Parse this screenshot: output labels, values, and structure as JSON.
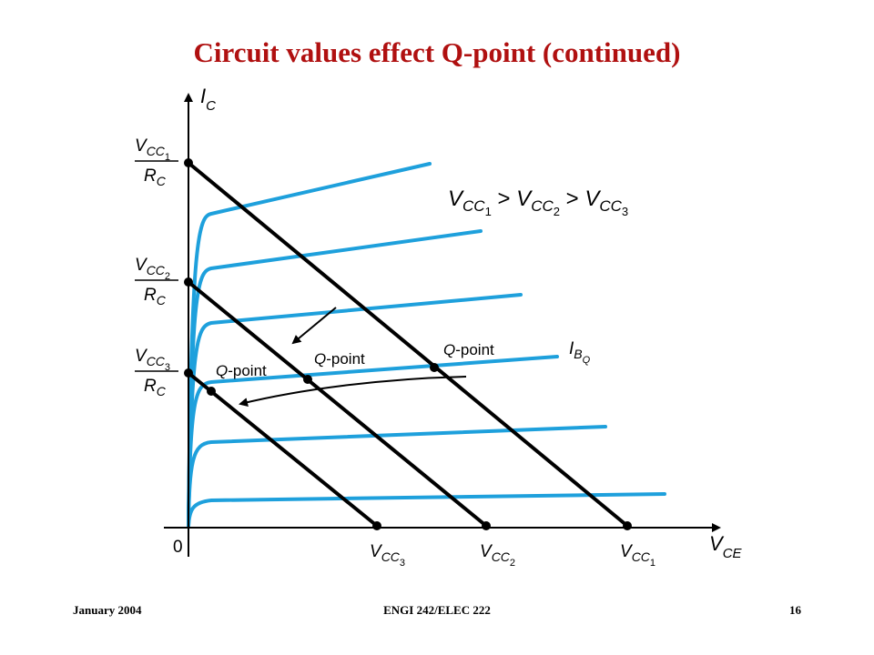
{
  "slide": {
    "title": "Circuit values effect Q-point (continued)"
  },
  "footer": {
    "date": "January 2004",
    "course": "ENGI 242/ELEC 222",
    "page": "16"
  },
  "diagram": {
    "axes": {
      "y_main": "I",
      "y_sub": "C",
      "x_main": "V",
      "x_sub": "CE",
      "origin": "0"
    },
    "y_intercepts": [
      {
        "num_main": "V",
        "num_sub": "CC",
        "num_subsub": "1",
        "den_main": "R",
        "den_sub": "C"
      },
      {
        "num_main": "V",
        "num_sub": "CC",
        "num_subsub": "2",
        "den_main": "R",
        "den_sub": "C"
      },
      {
        "num_main": "V",
        "num_sub": "CC",
        "num_subsub": "3",
        "den_main": "R",
        "den_sub": "C"
      }
    ],
    "x_intercepts": [
      {
        "main": "V",
        "sub": "CC",
        "subsub": "3"
      },
      {
        "main": "V",
        "sub": "CC",
        "subsub": "2"
      },
      {
        "main": "V",
        "sub": "CC",
        "subsub": "1"
      }
    ],
    "relation": {
      "t1": "V",
      "t1_sub": "CC",
      "t1_subsub": "1",
      "op1": " > ",
      "t2": "V",
      "t2_sub": "CC",
      "t2_subsub": "2",
      "op2": " > ",
      "t3": "V",
      "t3_sub": "CC",
      "t3_subsub": "3"
    },
    "qpoint_labels": [
      {
        "q": "Q",
        "rest": "-point"
      },
      {
        "q": "Q",
        "rest": "-point"
      },
      {
        "q": "Q",
        "rest": "-point"
      }
    ],
    "ibq_label": {
      "main": "I",
      "sub": "B",
      "subsub": "Q"
    },
    "colors": {
      "curves": "#1ea0dc",
      "load_lines": "#000000",
      "title": "#b01010"
    }
  }
}
